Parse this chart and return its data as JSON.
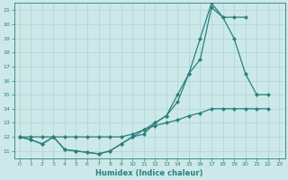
{
  "xlabel": "Humidex (Indice chaleur)",
  "bg_color": "#cce8e8",
  "line_color": "#2d7f7f",
  "grid_color": "#aed4d4",
  "xlim": [
    -0.5,
    23.5
  ],
  "ylim": [
    10.5,
    21.5
  ],
  "yticks": [
    11,
    12,
    13,
    14,
    15,
    16,
    17,
    18,
    19,
    20,
    21
  ],
  "xticks": [
    0,
    1,
    2,
    3,
    4,
    5,
    6,
    7,
    8,
    9,
    10,
    11,
    12,
    13,
    14,
    15,
    16,
    17,
    18,
    19,
    20,
    21,
    22,
    23
  ],
  "line1_x": [
    0,
    1,
    2,
    3,
    4,
    5,
    6,
    7,
    8,
    9,
    10,
    11,
    12,
    13,
    14,
    15,
    16,
    17,
    18,
    19,
    20,
    21,
    22
  ],
  "line1_y": [
    12,
    11.8,
    11.5,
    12.0,
    11.1,
    11.0,
    10.9,
    10.8,
    11.0,
    11.5,
    12.0,
    12.2,
    13.0,
    13.5,
    15.0,
    16.5,
    17.5,
    21.2,
    20.5,
    19.0,
    16.5,
    15.0,
    15.0
  ],
  "line2_x": [
    0,
    1,
    2,
    3,
    4,
    5,
    6,
    7,
    8,
    9,
    10,
    11,
    12,
    13,
    14,
    15,
    16,
    17,
    18,
    19,
    20
  ],
  "line2_y": [
    12,
    11.8,
    11.5,
    12.0,
    11.1,
    11.0,
    10.9,
    10.8,
    11.0,
    11.5,
    12.0,
    12.5,
    13.0,
    13.5,
    14.5,
    16.5,
    19.0,
    21.5,
    20.5,
    20.5,
    20.5
  ],
  "line3_x": [
    0,
    1,
    2,
    3,
    4,
    5,
    6,
    7,
    8,
    9,
    10,
    11,
    12,
    13,
    14,
    15,
    16,
    17,
    18,
    19,
    20,
    21,
    22
  ],
  "line3_y": [
    12,
    12.0,
    12.0,
    12.0,
    12.0,
    12.0,
    12.0,
    12.0,
    12.0,
    12.0,
    12.2,
    12.5,
    12.8,
    13.0,
    13.2,
    13.5,
    13.7,
    14.0,
    14.0,
    14.0,
    14.0,
    14.0,
    14.0
  ]
}
